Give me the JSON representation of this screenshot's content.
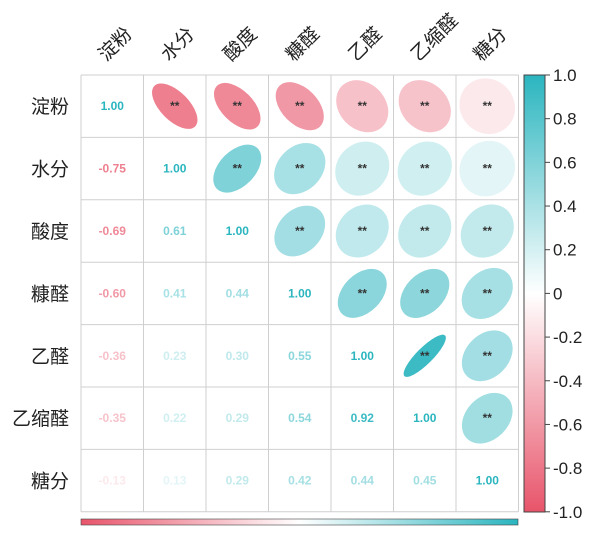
{
  "chart_data": {
    "type": "heatmap",
    "variables": [
      "淀粉",
      "水分",
      "酸度",
      "糠醛",
      "乙醛",
      "乙缩醛",
      "糖分"
    ],
    "matrix": [
      [
        1.0,
        -0.75,
        -0.69,
        -0.6,
        -0.36,
        -0.35,
        -0.13
      ],
      [
        -0.75,
        1.0,
        0.61,
        0.41,
        0.23,
        0.22,
        0.13
      ],
      [
        -0.69,
        0.61,
        1.0,
        0.44,
        0.3,
        0.29,
        0.29
      ],
      [
        -0.6,
        0.41,
        0.44,
        1.0,
        0.55,
        0.54,
        0.42
      ],
      [
        -0.36,
        0.23,
        0.3,
        0.55,
        1.0,
        0.92,
        0.44
      ],
      [
        -0.35,
        0.22,
        0.29,
        0.54,
        0.92,
        1.0,
        0.45
      ],
      [
        -0.13,
        0.13,
        0.29,
        0.42,
        0.44,
        0.45,
        1.0
      ]
    ],
    "lower_text": [
      [
        "1.00"
      ],
      [
        "-0.75",
        "1.00"
      ],
      [
        "-0.69",
        "0.61",
        "1.00"
      ],
      [
        "-0.60",
        "0.41",
        "0.44",
        "1.00"
      ],
      [
        "-0.36",
        "0.23",
        "0.30",
        "0.55",
        "1.00"
      ],
      [
        "-0.35",
        "0.22",
        "0.29",
        "0.54",
        "0.92",
        "1.00"
      ],
      [
        "-0.13",
        "0.13",
        "0.29",
        "0.42",
        "0.44",
        "0.45",
        "1.00"
      ]
    ],
    "significance_mark": "**",
    "colorbar": {
      "range": [
        -1.0,
        1.0
      ],
      "ticks": [
        "1.0",
        "0.8",
        "0.6",
        "0.4",
        "0.2",
        "0",
        "-0.2",
        "-0.4",
        "-0.6",
        "-0.8",
        "-1.0"
      ],
      "tick_values": [
        1.0,
        0.8,
        0.6,
        0.4,
        0.2,
        0,
        -0.2,
        -0.4,
        -0.6,
        -0.8,
        -1.0
      ],
      "placement": "right"
    },
    "colors": {
      "negative": "#E8546A",
      "neutral": "#FFFFFF",
      "positive": "#2BB5BF"
    },
    "grid": true
  }
}
